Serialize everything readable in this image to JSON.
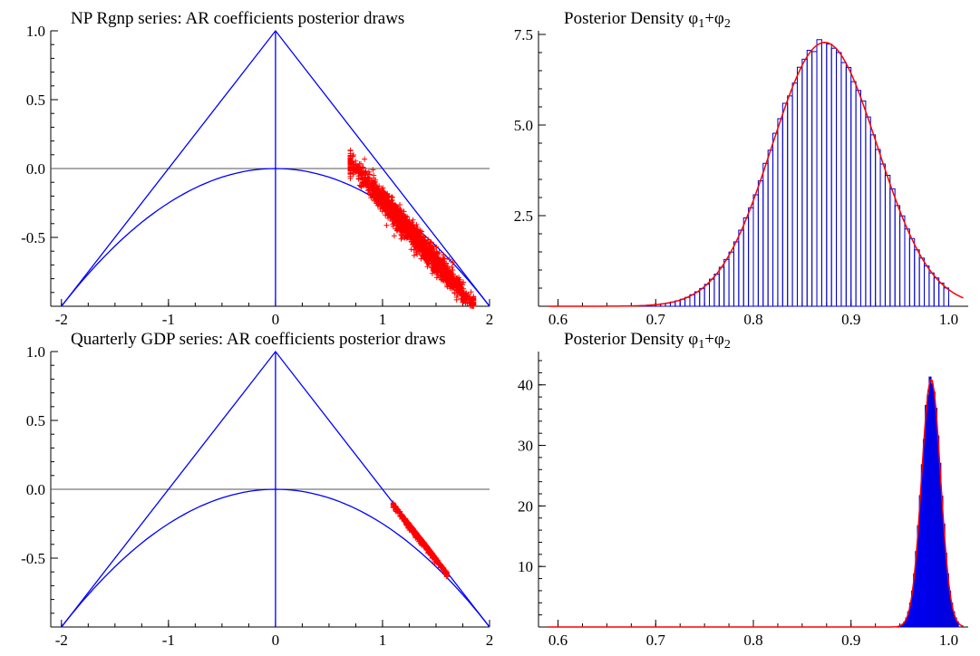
{
  "colors": {
    "frame": "#000000",
    "triangle": "#0000ff",
    "points": "#ff0000",
    "hist_edge": "#0000cc",
    "hist_fill": "#0000ff",
    "density": "#ff0000",
    "zero_line": "#555555"
  },
  "chart_data": [
    {
      "type": "scatter",
      "title": "NP Rgnp series: AR coefficients posterior draws",
      "xlim": [
        -2.1,
        2.0
      ],
      "ylim": [
        -1.0,
        1.0
      ],
      "xticks": [
        "-2",
        "-1",
        "0",
        "1",
        "2"
      ],
      "yticks": [
        "1.0",
        "0.5",
        "0.0",
        "-0.5"
      ],
      "overlay": [
        "stationarity-triangle",
        "complex-root-parabola",
        "horizontal-zero-line"
      ],
      "points_marker": "+",
      "cloud": {
        "x_range": [
          0.7,
          1.85
        ],
        "center_line": [
          [
            0.75,
            0.0
          ],
          [
            1.8,
            -0.95
          ]
        ],
        "band_width": 0.09
      }
    },
    {
      "type": "histogram",
      "title": "Posterior Density φ1+φ2",
      "title_parts": {
        "main": "Posterior Density ",
        "phi": "φ",
        "sub1": "1",
        "plus": "+",
        "sub2": "2"
      },
      "xlim": [
        0.58,
        1.02
      ],
      "ylim": [
        0.0,
        7.6
      ],
      "xticks": [
        "0.6",
        "0.7",
        "0.8",
        "0.9",
        "1.0"
      ],
      "yticks": [
        "7.5",
        "5.0",
        "2.5"
      ],
      "bins": {
        "start": 0.6,
        "width": 0.005,
        "count": 80
      },
      "density": {
        "mean": 0.873,
        "sd": 0.054,
        "peak": 7.28
      },
      "hist_filled": false
    },
    {
      "type": "scatter",
      "title": "Quarterly GDP series: AR coefficients posterior draws",
      "xlim": [
        -2.1,
        2.0
      ],
      "ylim": [
        -1.0,
        1.0
      ],
      "xticks": [
        "-2",
        "-1",
        "0",
        "1",
        "2"
      ],
      "yticks": [
        "1.0",
        "0.5",
        "0.0",
        "-0.5"
      ],
      "overlay": [
        "stationarity-triangle",
        "complex-root-parabola",
        "horizontal-zero-line"
      ],
      "points_marker": "+",
      "cloud": {
        "x_range": [
          1.1,
          1.6
        ],
        "center_line": [
          [
            1.1,
            -0.11
          ],
          [
            1.6,
            -0.6
          ]
        ],
        "band_width": 0.03
      }
    },
    {
      "type": "histogram",
      "title": "Posterior Density φ1+φ2",
      "title_parts": {
        "main": "Posterior Density ",
        "phi": "φ",
        "sub1": "1",
        "plus": "+",
        "sub2": "2"
      },
      "xlim": [
        0.58,
        1.02
      ],
      "ylim": [
        0.0,
        45.5
      ],
      "xticks": [
        "0.6",
        "0.7",
        "0.8",
        "0.9",
        "1.0"
      ],
      "yticks": [
        "40",
        "30",
        "20",
        "10"
      ],
      "bins": {
        "start": 0.95,
        "width": 0.002,
        "count": 30
      },
      "density": {
        "mean": 0.982,
        "sd": 0.0097,
        "peak": 41.0
      },
      "hist_filled": true
    }
  ]
}
